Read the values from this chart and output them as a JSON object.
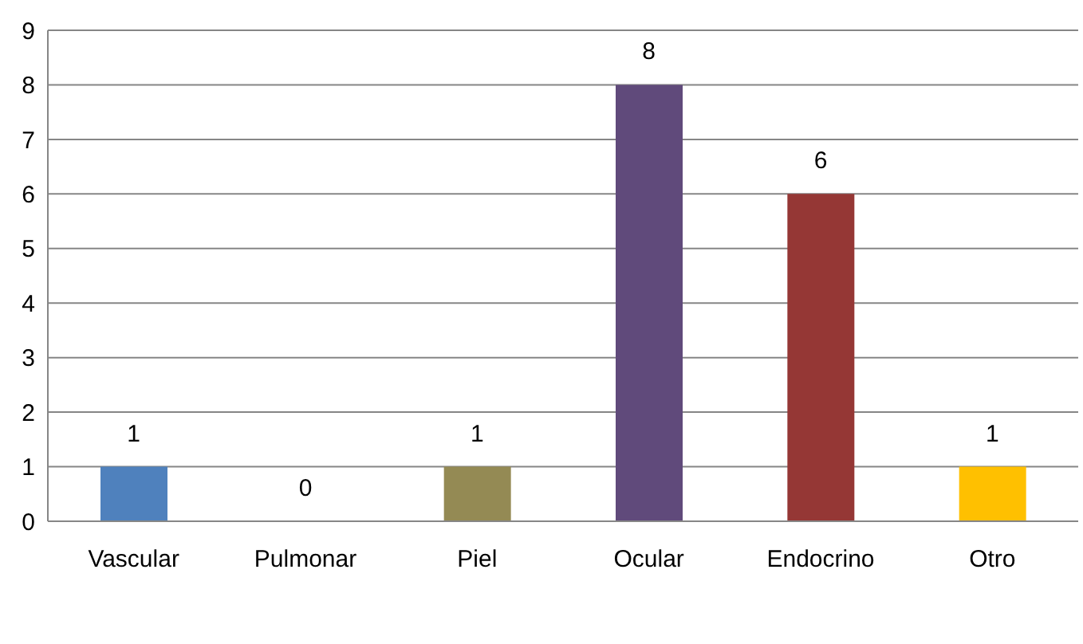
{
  "chart_data": {
    "type": "bar",
    "categories": [
      "Vascular",
      "Pulmonar",
      "Piel",
      "Ocular",
      "Endocrino",
      "Otro"
    ],
    "values": [
      1,
      0,
      1,
      8,
      6,
      1
    ],
    "colors": [
      "#4f81bd",
      "#4bacc6",
      "#948a54",
      "#604a7b",
      "#953735",
      "#ffc000"
    ],
    "ylim": [
      0,
      9
    ],
    "yticks": [
      0,
      1,
      2,
      3,
      4,
      5,
      6,
      7,
      8,
      9
    ],
    "grid": "y",
    "data_labels": true
  }
}
